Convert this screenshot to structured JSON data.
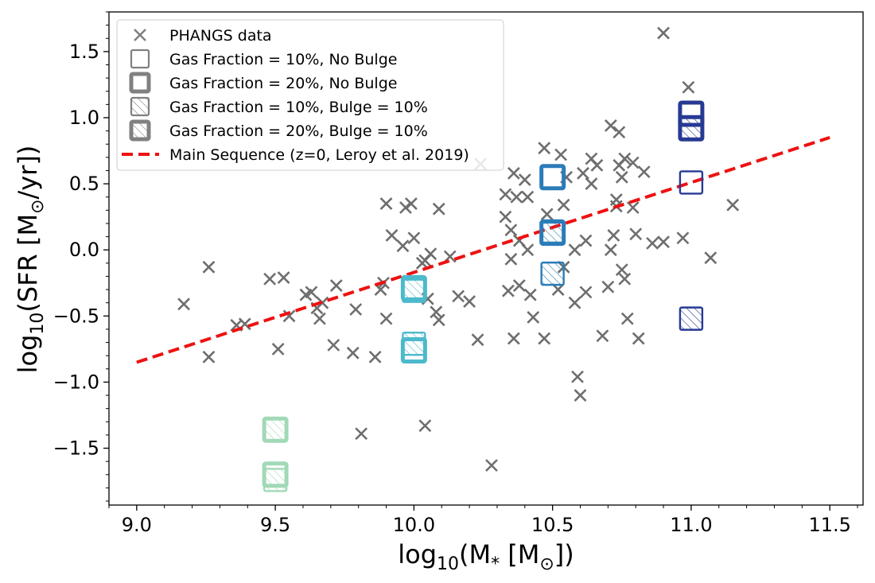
{
  "chart_data": {
    "type": "scatter",
    "xlabel": {
      "base": "log",
      "base_sub": "10",
      "open": "(M",
      "star_sub": "*",
      "mid": " [M",
      "sun_sub": "⊙",
      "close": "])"
    },
    "ylabel": {
      "base": "log",
      "base_sub": "10",
      "open": "(SFR [M",
      "sun_sub": "⊙",
      "close": "/yr])"
    },
    "xlim": [
      8.9,
      11.62
    ],
    "ylim": [
      -1.93,
      1.8
    ],
    "xticks": [
      9.0,
      9.5,
      10.0,
      10.5,
      11.0,
      11.5
    ],
    "xtick_labels": [
      "9.0",
      "9.5",
      "10.0",
      "10.5",
      "11.0",
      "11.5"
    ],
    "yticks": [
      -1.5,
      -1.0,
      -0.5,
      0.0,
      0.5,
      1.0,
      1.5
    ],
    "ytick_labels": [
      "−1.5",
      "−1.0",
      "−0.5",
      "0.0",
      "0.5",
      "1.0",
      "1.5"
    ],
    "grid": false,
    "legend_position": "top-left",
    "legend": [
      {
        "label": "PHANGS data",
        "marker": "x"
      },
      {
        "label": "Gas Fraction = 10%, No Bulge",
        "marker": "square-thin"
      },
      {
        "label": "Gas Fraction = 20%, No Bulge",
        "marker": "square-thick"
      },
      {
        "label": "Gas Fraction = 10%, Bulge = 10%",
        "marker": "square-thin-hatched"
      },
      {
        "label": "Gas Fraction = 20%, Bulge = 10%",
        "marker": "square-thick-hatched"
      },
      {
        "label": "Main Sequence (z=0, Leroy et al. 2019)",
        "marker": "dashed-line"
      }
    ],
    "phangs": {
      "color": "#6e6e6e",
      "points": [
        [
          9.17,
          -0.41
        ],
        [
          9.26,
          -0.13
        ],
        [
          9.26,
          -0.81
        ],
        [
          9.36,
          -0.57
        ],
        [
          9.39,
          -0.56
        ],
        [
          9.48,
          -0.22
        ],
        [
          9.51,
          -0.75
        ],
        [
          9.53,
          -0.21
        ],
        [
          9.55,
          -0.5
        ],
        [
          9.61,
          -0.34
        ],
        [
          9.63,
          -0.32
        ],
        [
          9.65,
          -0.44
        ],
        [
          9.66,
          -0.52
        ],
        [
          9.67,
          -0.4
        ],
        [
          9.71,
          -0.72
        ],
        [
          9.72,
          -0.27
        ],
        [
          9.78,
          -0.78
        ],
        [
          9.79,
          -0.45
        ],
        [
          9.81,
          -1.39
        ],
        [
          9.86,
          -0.81
        ],
        [
          9.88,
          -0.3
        ],
        [
          9.89,
          -0.25
        ],
        [
          9.9,
          0.35
        ],
        [
          9.9,
          -0.52
        ],
        [
          9.92,
          0.11
        ],
        [
          9.96,
          0.03
        ],
        [
          9.97,
          0.32
        ],
        [
          9.99,
          0.35
        ],
        [
          10.0,
          0.09
        ],
        [
          10.03,
          -0.1
        ],
        [
          10.04,
          -0.08
        ],
        [
          10.04,
          -1.33
        ],
        [
          10.05,
          -0.37
        ],
        [
          10.06,
          -0.03
        ],
        [
          10.08,
          -0.47
        ],
        [
          10.09,
          -0.53
        ],
        [
          10.09,
          0.31
        ],
        [
          10.13,
          -0.05
        ],
        [
          10.16,
          -0.35
        ],
        [
          10.2,
          -0.39
        ],
        [
          10.23,
          -0.68
        ],
        [
          10.24,
          0.65
        ],
        [
          10.28,
          -1.63
        ],
        [
          10.33,
          0.42
        ],
        [
          10.33,
          0.25
        ],
        [
          10.34,
          -0.31
        ],
        [
          10.35,
          -0.07
        ],
        [
          10.35,
          0.15
        ],
        [
          10.36,
          0.58
        ],
        [
          10.36,
          -0.67
        ],
        [
          10.37,
          0.4
        ],
        [
          10.38,
          -0.27
        ],
        [
          10.38,
          0.07
        ],
        [
          10.4,
          0.53
        ],
        [
          10.41,
          0.4
        ],
        [
          10.41,
          0.0
        ],
        [
          10.42,
          -0.34
        ],
        [
          10.43,
          -0.51
        ],
        [
          10.47,
          0.77
        ],
        [
          10.47,
          -0.67
        ],
        [
          10.48,
          0.27
        ],
        [
          10.52,
          -0.3
        ],
        [
          10.53,
          0.72
        ],
        [
          10.54,
          0.34
        ],
        [
          10.54,
          -0.13
        ],
        [
          10.55,
          0.55
        ],
        [
          10.58,
          -0.4
        ],
        [
          10.58,
          0.0
        ],
        [
          10.59,
          -0.96
        ],
        [
          10.6,
          -1.1
        ],
        [
          10.61,
          0.58
        ],
        [
          10.62,
          0.07
        ],
        [
          10.62,
          -0.32
        ],
        [
          10.64,
          0.5
        ],
        [
          10.64,
          0.69
        ],
        [
          10.66,
          0.64
        ],
        [
          10.68,
          -0.65
        ],
        [
          10.7,
          -0.28
        ],
        [
          10.71,
          0.94
        ],
        [
          10.71,
          0.0
        ],
        [
          10.72,
          0.11
        ],
        [
          10.73,
          0.38
        ],
        [
          10.73,
          0.33
        ],
        [
          10.74,
          0.89
        ],
        [
          10.74,
          0.64
        ],
        [
          10.75,
          -0.15
        ],
        [
          10.75,
          0.55
        ],
        [
          10.76,
          0.69
        ],
        [
          10.76,
          -0.22
        ],
        [
          10.77,
          -0.52
        ],
        [
          10.79,
          0.66
        ],
        [
          10.79,
          0.32
        ],
        [
          10.8,
          0.12
        ],
        [
          10.81,
          -0.67
        ],
        [
          10.83,
          0.59
        ],
        [
          10.86,
          0.05
        ],
        [
          10.9,
          1.64
        ],
        [
          10.9,
          0.06
        ],
        [
          10.97,
          0.09
        ],
        [
          10.99,
          1.23
        ],
        [
          11.07,
          -0.06
        ],
        [
          11.15,
          0.34
        ]
      ]
    },
    "main_sequence": {
      "x": [
        9.0,
        11.5
      ],
      "y": [
        -0.85,
        0.85
      ],
      "color": "#ee1111"
    },
    "models": [
      {
        "x": 9.5,
        "y": -1.36,
        "color": "#a1d9b7",
        "thick": true,
        "hatched": true
      },
      {
        "x": 9.5,
        "y": -1.7,
        "color": "#a1d9b7",
        "thick": true,
        "hatched": false
      },
      {
        "x": 9.5,
        "y": -1.74,
        "color": "#a1d9b7",
        "thick": false,
        "hatched": true
      },
      {
        "x": 10.0,
        "y": -0.29,
        "color": "#4cb9cc",
        "thick": true,
        "hatched": false
      },
      {
        "x": 10.0,
        "y": -0.31,
        "color": "#4cb9cc",
        "thick": false,
        "hatched": true
      },
      {
        "x": 10.0,
        "y": -0.76,
        "color": "#4cb9cc",
        "thick": true,
        "hatched": false
      },
      {
        "x": 10.0,
        "y": -0.71,
        "color": "#4cb9cc",
        "thick": false,
        "hatched": true
      },
      {
        "x": 10.5,
        "y": 0.55,
        "color": "#2b7cb8",
        "thick": true,
        "hatched": false
      },
      {
        "x": 10.5,
        "y": 0.13,
        "color": "#2b7cb8",
        "thick": true,
        "hatched": false
      },
      {
        "x": 10.5,
        "y": 0.14,
        "color": "#2b7cb8",
        "thick": false,
        "hatched": true
      },
      {
        "x": 10.5,
        "y": -0.18,
        "color": "#2b7cb8",
        "thick": false,
        "hatched": true
      },
      {
        "x": 11.0,
        "y": 1.03,
        "color": "#263a93",
        "thick": true,
        "hatched": false
      },
      {
        "x": 11.0,
        "y": 0.92,
        "color": "#263a93",
        "thick": true,
        "hatched": true
      },
      {
        "x": 11.0,
        "y": 0.51,
        "color": "#263a93",
        "thick": false,
        "hatched": false
      },
      {
        "x": 11.0,
        "y": -0.52,
        "color": "#263a93",
        "thick": false,
        "hatched": true
      }
    ],
    "legend_color": "#808080"
  }
}
